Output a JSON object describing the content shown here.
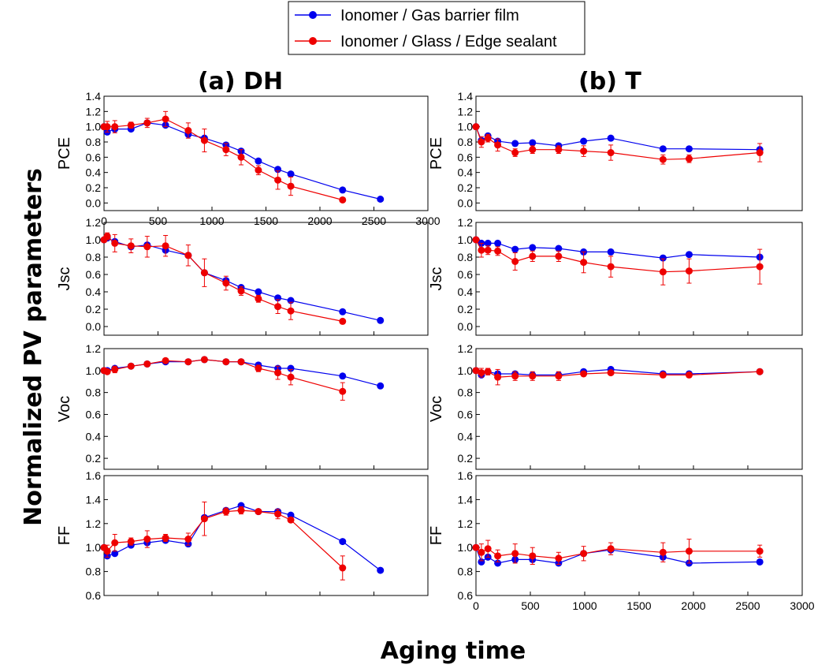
{
  "figure": {
    "global_ylabel": "Normalized PV parameters",
    "global_xlabel": "Aging time",
    "legend": {
      "placement": "top-center",
      "entries": [
        "Ionomer / Gas barrier film",
        "Ionomer / Glass / Edge sealant"
      ]
    },
    "colors": {
      "series_a": "#0000ee",
      "series_b": "#ee0000"
    }
  },
  "chart_data": [
    {
      "type": "line",
      "panel": "(a) DH",
      "title": "(a) DH",
      "ylabel": "PCE",
      "xlim": [
        0,
        3000
      ],
      "ylim": [
        -0.1,
        1.4
      ],
      "xticks": [
        0,
        500,
        1000,
        1500,
        2000,
        2500,
        3000
      ],
      "yticks": [
        0.0,
        0.2,
        0.4,
        0.6,
        0.8,
        1.0,
        1.2,
        1.4
      ],
      "series": [
        {
          "name": "Ionomer / Gas barrier film",
          "x": [
            0,
            30,
            100,
            250,
            400,
            570,
            780,
            930,
            1130,
            1270,
            1430,
            1610,
            1730,
            2210,
            2560
          ],
          "y": [
            1.0,
            0.93,
            0.97,
            0.97,
            1.05,
            1.02,
            0.9,
            0.85,
            0.76,
            0.68,
            0.55,
            0.44,
            0.38,
            0.17,
            0.05
          ]
        },
        {
          "name": "Ionomer / Glass / Edge sealant",
          "x": [
            0,
            30,
            100,
            250,
            400,
            570,
            780,
            930,
            1130,
            1270,
            1430,
            1610,
            1730,
            2210
          ],
          "y": [
            1.0,
            1.0,
            1.0,
            1.02,
            1.05,
            1.1,
            0.95,
            0.82,
            0.7,
            0.6,
            0.43,
            0.3,
            0.22,
            0.04
          ],
          "err": [
            0.0,
            0.07,
            0.08,
            0.04,
            0.06,
            0.1,
            0.1,
            0.15,
            0.08,
            0.1,
            0.06,
            0.12,
            0.12,
            0.02
          ]
        }
      ]
    },
    {
      "type": "line",
      "panel": "(a) DH",
      "ylabel": "Jsc",
      "xlim": [
        0,
        3000
      ],
      "ylim": [
        -0.1,
        1.2
      ],
      "yticks": [
        0.0,
        0.2,
        0.4,
        0.6,
        0.8,
        1.0,
        1.2
      ],
      "series": [
        {
          "name": "Ionomer / Gas barrier film",
          "x": [
            0,
            30,
            100,
            250,
            400,
            570,
            780,
            930,
            1130,
            1270,
            1430,
            1610,
            1730,
            2210,
            2560
          ],
          "y": [
            1.0,
            1.02,
            0.98,
            0.92,
            0.94,
            0.88,
            0.82,
            0.62,
            0.53,
            0.45,
            0.4,
            0.33,
            0.3,
            0.17,
            0.07
          ]
        },
        {
          "name": "Ionomer / Glass / Edge sealant",
          "x": [
            0,
            30,
            100,
            250,
            400,
            570,
            780,
            930,
            1130,
            1270,
            1430,
            1610,
            1730,
            2210
          ],
          "y": [
            1.0,
            1.04,
            0.96,
            0.93,
            0.92,
            0.93,
            0.82,
            0.62,
            0.5,
            0.41,
            0.32,
            0.23,
            0.18,
            0.06
          ],
          "err": [
            0.0,
            0.04,
            0.1,
            0.08,
            0.12,
            0.12,
            0.12,
            0.16,
            0.08,
            0.05,
            0.04,
            0.08,
            0.1,
            0.02
          ]
        }
      ]
    },
    {
      "type": "line",
      "panel": "(a) DH",
      "ylabel": "Voc",
      "xlim": [
        0,
        3000
      ],
      "ylim": [
        0.1,
        1.2
      ],
      "yticks": [
        0.2,
        0.4,
        0.6,
        0.8,
        1.0,
        1.2
      ],
      "series": [
        {
          "name": "Ionomer / Gas barrier film",
          "x": [
            0,
            30,
            100,
            250,
            400,
            570,
            780,
            930,
            1130,
            1270,
            1430,
            1610,
            1730,
            2210,
            2560
          ],
          "y": [
            1.0,
            1.0,
            1.02,
            1.04,
            1.06,
            1.08,
            1.08,
            1.1,
            1.08,
            1.08,
            1.05,
            1.02,
            1.02,
            0.95,
            0.86
          ]
        },
        {
          "name": "Ionomer / Glass / Edge sealant",
          "x": [
            0,
            30,
            100,
            250,
            400,
            570,
            780,
            930,
            1130,
            1270,
            1430,
            1610,
            1730,
            2210
          ],
          "y": [
            1.0,
            0.99,
            1.01,
            1.04,
            1.06,
            1.09,
            1.08,
            1.1,
            1.08,
            1.08,
            1.02,
            0.98,
            0.94,
            0.81
          ],
          "err": [
            0.0,
            0.02,
            0.03,
            0.02,
            0.02,
            0.02,
            0.02,
            0.02,
            0.02,
            0.02,
            0.03,
            0.06,
            0.07,
            0.08
          ]
        }
      ]
    },
    {
      "type": "line",
      "panel": "(a) DH",
      "ylabel": "FF",
      "xlim": [
        0,
        3000
      ],
      "ylim": [
        0.6,
        1.6
      ],
      "yticks": [
        0.6,
        0.8,
        1.0,
        1.2,
        1.4,
        1.6
      ],
      "series": [
        {
          "name": "Ionomer / Gas barrier film",
          "x": [
            0,
            30,
            100,
            250,
            400,
            570,
            780,
            930,
            1130,
            1270,
            1430,
            1610,
            1730,
            2210,
            2560
          ],
          "y": [
            1.0,
            0.93,
            0.95,
            1.02,
            1.04,
            1.06,
            1.03,
            1.25,
            1.31,
            1.35,
            1.3,
            1.3,
            1.27,
            1.05,
            0.81
          ]
        },
        {
          "name": "Ionomer / Glass / Edge sealant",
          "x": [
            0,
            30,
            100,
            250,
            400,
            570,
            780,
            930,
            1130,
            1270,
            1430,
            1610,
            1730,
            2210
          ],
          "y": [
            1.0,
            0.97,
            1.04,
            1.05,
            1.07,
            1.08,
            1.07,
            1.24,
            1.3,
            1.31,
            1.3,
            1.28,
            1.23,
            0.83
          ],
          "err": [
            0.0,
            0.05,
            0.07,
            0.03,
            0.07,
            0.03,
            0.05,
            0.14,
            0.03,
            0.03,
            0.02,
            0.04,
            0.02,
            0.1
          ]
        }
      ]
    },
    {
      "type": "line",
      "panel": "(b) T",
      "title": "(b) T",
      "ylabel": "PCE",
      "xlim": [
        0,
        3000
      ],
      "ylim": [
        -0.1,
        1.4
      ],
      "yticks": [
        0.0,
        0.2,
        0.4,
        0.6,
        0.8,
        1.0,
        1.2,
        1.4
      ],
      "series": [
        {
          "name": "Ionomer / Gas barrier film",
          "x": [
            0,
            50,
            110,
            200,
            360,
            520,
            760,
            990,
            1240,
            1720,
            1960,
            2610
          ],
          "y": [
            1.0,
            0.82,
            0.88,
            0.81,
            0.78,
            0.79,
            0.75,
            0.81,
            0.85,
            0.71,
            0.71,
            0.7
          ]
        },
        {
          "name": "Ionomer / Glass / Edge sealant",
          "x": [
            0,
            50,
            110,
            200,
            360,
            520,
            760,
            990,
            1240,
            1720,
            1960,
            2610
          ],
          "y": [
            1.0,
            0.8,
            0.85,
            0.76,
            0.66,
            0.7,
            0.7,
            0.68,
            0.66,
            0.57,
            0.58,
            0.66
          ],
          "err": [
            0.0,
            0.07,
            0.05,
            0.08,
            0.05,
            0.05,
            0.05,
            0.07,
            0.1,
            0.06,
            0.05,
            0.12
          ]
        }
      ]
    },
    {
      "type": "line",
      "panel": "(b) T",
      "ylabel": "Jsc",
      "xlim": [
        0,
        3000
      ],
      "ylim": [
        -0.1,
        1.2
      ],
      "yticks": [
        0.0,
        0.2,
        0.4,
        0.6,
        0.8,
        1.0,
        1.2
      ],
      "series": [
        {
          "name": "Ionomer / Gas barrier film",
          "x": [
            0,
            50,
            110,
            200,
            360,
            520,
            760,
            990,
            1240,
            1720,
            1960,
            2610
          ],
          "y": [
            1.0,
            0.96,
            0.96,
            0.96,
            0.89,
            0.91,
            0.9,
            0.86,
            0.86,
            0.79,
            0.83,
            0.8
          ]
        },
        {
          "name": "Ionomer / Glass / Edge sealant",
          "x": [
            0,
            50,
            110,
            200,
            360,
            520,
            760,
            990,
            1240,
            1720,
            1960,
            2610
          ],
          "y": [
            1.0,
            0.88,
            0.88,
            0.87,
            0.75,
            0.81,
            0.81,
            0.74,
            0.69,
            0.63,
            0.64,
            0.69
          ],
          "err": [
            0.0,
            0.08,
            0.05,
            0.05,
            0.1,
            0.06,
            0.06,
            0.12,
            0.12,
            0.15,
            0.14,
            0.2
          ]
        }
      ]
    },
    {
      "type": "line",
      "panel": "(b) T",
      "ylabel": "Voc",
      "xlim": [
        0,
        3000
      ],
      "ylim": [
        0.1,
        1.2
      ],
      "yticks": [
        0.2,
        0.4,
        0.6,
        0.8,
        1.0,
        1.2
      ],
      "series": [
        {
          "name": "Ionomer / Gas barrier film",
          "x": [
            0,
            50,
            110,
            200,
            360,
            520,
            760,
            990,
            1240,
            1720,
            1960,
            2610
          ],
          "y": [
            1.0,
            0.96,
            0.99,
            0.97,
            0.97,
            0.96,
            0.96,
            0.99,
            1.01,
            0.97,
            0.97,
            0.99
          ]
        },
        {
          "name": "Ionomer / Glass / Edge sealant",
          "x": [
            0,
            50,
            110,
            200,
            360,
            520,
            760,
            990,
            1240,
            1720,
            1960,
            2610
          ],
          "y": [
            1.0,
            0.98,
            0.99,
            0.94,
            0.95,
            0.95,
            0.95,
            0.97,
            0.98,
            0.96,
            0.96,
            0.99
          ],
          "err": [
            0.0,
            0.04,
            0.03,
            0.07,
            0.04,
            0.04,
            0.04,
            0.02,
            0.02,
            0.02,
            0.02,
            0.02
          ]
        }
      ]
    },
    {
      "type": "line",
      "panel": "(b) T",
      "ylabel": "FF",
      "xlim": [
        0,
        3000
      ],
      "ylim": [
        0.6,
        1.6
      ],
      "xticks": [
        0,
        500,
        1000,
        1500,
        2000,
        2500,
        3000
      ],
      "yticks": [
        0.6,
        0.8,
        1.0,
        1.2,
        1.4,
        1.6
      ],
      "series": [
        {
          "name": "Ionomer / Gas barrier film",
          "x": [
            0,
            50,
            110,
            200,
            360,
            520,
            760,
            990,
            1240,
            1720,
            1960,
            2610
          ],
          "y": [
            1.0,
            0.88,
            0.92,
            0.87,
            0.9,
            0.9,
            0.87,
            0.95,
            0.98,
            0.92,
            0.87,
            0.88
          ]
        },
        {
          "name": "Ionomer / Glass / Edge sealant",
          "x": [
            0,
            50,
            110,
            200,
            360,
            520,
            760,
            990,
            1240,
            1720,
            1960,
            2610
          ],
          "y": [
            1.0,
            0.96,
            0.99,
            0.93,
            0.95,
            0.93,
            0.91,
            0.95,
            0.99,
            0.96,
            0.97,
            0.97
          ],
          "err": [
            0.0,
            0.07,
            0.07,
            0.05,
            0.08,
            0.07,
            0.05,
            0.06,
            0.05,
            0.08,
            0.1,
            0.05
          ]
        }
      ]
    }
  ]
}
